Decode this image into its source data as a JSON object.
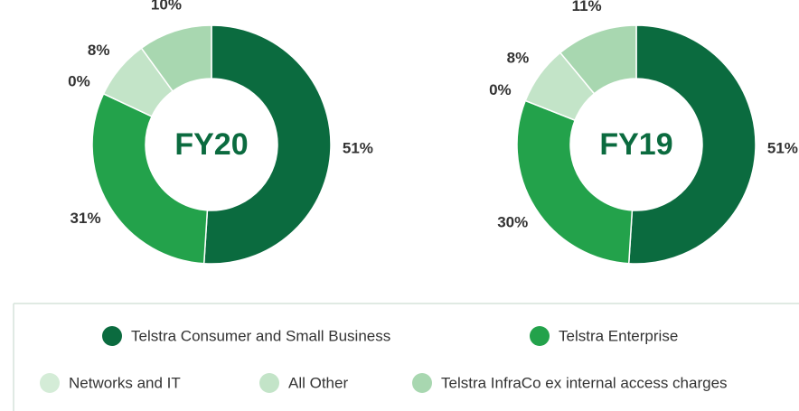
{
  "chart_data": [
    {
      "type": "pie",
      "center_label": "FY20",
      "categories": [
        "Telstra Consumer and Small Business",
        "Telstra Enterprise",
        "Networks and IT",
        "All Other",
        "Telstra InfraCo ex internal access charges"
      ],
      "values": [
        51,
        31,
        0,
        8,
        10
      ],
      "value_labels": [
        "51%",
        "31%",
        "0%",
        "8%",
        "10%"
      ],
      "colors": [
        "#0b6b3f",
        "#23a24b",
        "#d4ecd7",
        "#c3e4c8",
        "#a8d7b0"
      ]
    },
    {
      "type": "pie",
      "center_label": "FY19",
      "categories": [
        "Telstra Consumer and Small Business",
        "Telstra Enterprise",
        "Networks and IT",
        "All Other",
        "Telstra InfraCo ex internal access charges"
      ],
      "values": [
        51,
        30,
        0,
        8,
        11
      ],
      "value_labels": [
        "51%",
        "30%",
        "0%",
        "8%",
        "11%"
      ],
      "colors": [
        "#0b6b3f",
        "#23a24b",
        "#d4ecd7",
        "#c3e4c8",
        "#a8d7b0"
      ]
    }
  ]
}
